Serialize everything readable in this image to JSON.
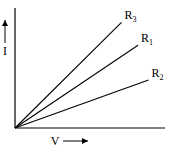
{
  "chart_data": {
    "type": "line",
    "xlabel": "V",
    "ylabel": "I",
    "xlim": [
      0,
      10
    ],
    "ylim": [
      0,
      10
    ],
    "tick_labels": false,
    "grid": false,
    "series": [
      {
        "name": "R3",
        "color": "#000000",
        "x": [
          0,
          7.1
        ],
        "values": [
          0,
          8.8
        ]
      },
      {
        "name": "R1",
        "color": "#000000",
        "x": [
          0,
          8.2
        ],
        "values": [
          0,
          6.9
        ]
      },
      {
        "name": "R2",
        "color": "#000000",
        "x": [
          0,
          8.9
        ],
        "values": [
          0,
          4.0
        ]
      }
    ]
  }
}
